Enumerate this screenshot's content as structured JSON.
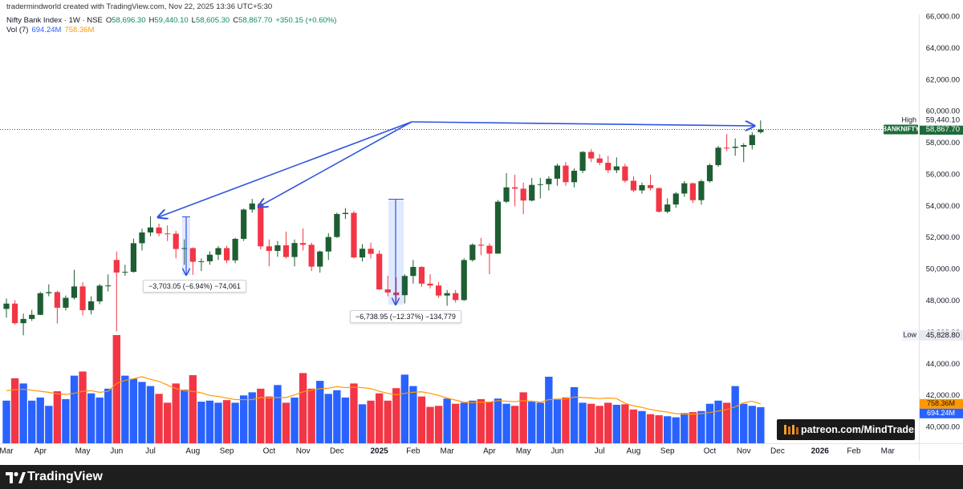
{
  "header": {
    "credit": "tradermindworld created with TradingView.com, Nov 22, 2025 13:36 UTC+5:30"
  },
  "chart_data": {
    "type": "candlestick",
    "title": "Nifty Bank Index · 1W · NSE",
    "ohlc_legend": [
      {
        "key": "O",
        "text": "58,696.30"
      },
      {
        "key": "H",
        "text": "59,440.10"
      },
      {
        "key": "L",
        "text": "58,605.30"
      },
      {
        "key": "C",
        "text": "58,867.70"
      }
    ],
    "change": "+350.15 (+0.60%)",
    "categories": [
      "Mar",
      null,
      null,
      null,
      "Apr",
      null,
      null,
      null,
      null,
      "May",
      null,
      null,
      null,
      "Jun",
      null,
      null,
      null,
      "Jul",
      null,
      null,
      null,
      null,
      "Aug",
      null,
      null,
      null,
      "Sep",
      null,
      null,
      null,
      null,
      "Oct",
      null,
      null,
      null,
      "Nov",
      null,
      null,
      null,
      "Dec",
      null,
      null,
      null,
      null,
      "2025",
      null,
      null,
      null,
      "Feb",
      null,
      null,
      null,
      "Mar",
      null,
      null,
      null,
      null,
      "Apr",
      null,
      null,
      null,
      "May",
      null,
      null,
      null,
      "Jun",
      null,
      null,
      null,
      null,
      "Jul",
      null,
      null,
      null,
      "Aug",
      null,
      null,
      null,
      "Sep",
      null,
      null,
      null,
      null,
      "Oct",
      null,
      null,
      null,
      "Nov",
      null,
      null,
      null,
      "Dec",
      null,
      null,
      null,
      null,
      "2026",
      null,
      null,
      null,
      "Feb",
      null,
      null,
      null,
      "Mar",
      null,
      null,
      null
    ],
    "open": [
      47500,
      47836,
      46594,
      46864,
      47124,
      48493,
      48564,
      47574,
      48201,
      48923,
      47421,
      47977,
      48971,
      50600,
      49803,
      49847,
      51661,
      52342,
      52660,
      52279,
      52265,
      51295,
      51350,
      50485,
      50517,
      50933,
      51351,
      50576,
      51938,
      53793,
      54178,
      51462,
      51172,
      51531,
      50788,
      51673,
      51561,
      50179,
      51135,
      52055,
      53510,
      53583,
      50759,
      51311,
      50988,
      48734,
      48540,
      48368,
      49587,
      50158,
      49099,
      48981,
      48345,
      48497,
      48060,
      50593,
      51564,
      51502,
      51002,
      54290,
      55201,
      55115,
      54365,
      55355,
      55398,
      55749,
      56578,
      55527,
      56252,
      57443,
      57031,
      56755,
      56283,
      56528,
      55618,
      55005,
      55341,
      55149,
      53655,
      54114,
      54809,
      55458,
      54389,
      55589,
      56609,
      57713,
      57699,
      57776,
      57877,
      58696.3,
      null,
      null,
      null,
      null,
      null,
      null,
      null,
      null,
      null,
      null,
      null,
      null,
      null,
      null,
      null,
      null,
      null,
      null
    ],
    "high": [
      48161,
      48050,
      47200,
      47440,
      48580,
      49057,
      48650,
      48350,
      49975,
      49200,
      48300,
      49080,
      49690,
      51133,
      50300,
      51960,
      52580,
      53357,
      52900,
      52790,
      52450,
      51900,
      51400,
      50700,
      51150,
      51480,
      51500,
      52000,
      53860,
      54467,
      54200,
      51900,
      51800,
      52400,
      51900,
      52600,
      51700,
      51200,
      52300,
      53600,
      53888,
      53700,
      51600,
      51700,
      51200,
      49600,
      49500,
      49700,
      50600,
      50200,
      49700,
      49200,
      48700,
      48700,
      50700,
      51650,
      52000,
      51650,
      54400,
      56100,
      56000,
      55500,
      55800,
      55800,
      55900,
      56700,
      56800,
      56400,
      57500,
      57614,
      57300,
      57200,
      57100,
      56700,
      55900,
      55500,
      56000,
      55200,
      54500,
      54900,
      55600,
      55500,
      55700,
      56700,
      57830,
      58577,
      58300,
      58000,
      58700,
      59440.1,
      null,
      null,
      null,
      null,
      null,
      null,
      null,
      null,
      null,
      null,
      null,
      null,
      null,
      null,
      null,
      null,
      null,
      null
    ],
    "low": [
      46950,
      46511,
      45828.8,
      46740,
      47100,
      48300,
      46580,
      47400,
      48100,
      47100,
      47150,
      47800,
      48600,
      46077,
      49600,
      49800,
      51200,
      52100,
      52100,
      51800,
      50700,
      50300,
      49654.6,
      49900,
      50300,
      50600,
      50400,
      50400,
      51800,
      53600,
      51280,
      50200,
      50800,
      50700,
      50200,
      51200,
      49900,
      49800,
      50600,
      52000,
      53200,
      50700,
      50500,
      50700,
      48700,
      48300,
      47900,
      47844,
      49100,
      48900,
      48800,
      48200,
      47700,
      47900,
      48000,
      50500,
      50900,
      49700,
      51000,
      54200,
      54000,
      53500,
      54300,
      54500,
      55000,
      55300,
      55300,
      55200,
      56100,
      56800,
      56600,
      56100,
      56100,
      55500,
      54900,
      54800,
      55000,
      53600,
      53560,
      53900,
      54600,
      54200,
      54100,
      55500,
      56500,
      57500,
      57200,
      56800,
      57600,
      58605.3,
      null,
      null,
      null,
      null,
      null,
      null,
      null,
      null,
      null,
      null,
      null,
      null,
      null,
      null,
      null,
      null,
      null,
      null
    ],
    "close": [
      47836,
      46594,
      46864,
      47124,
      48493,
      48564,
      47574,
      48201,
      48923,
      47421,
      47977,
      48971,
      48983,
      49803,
      49847,
      51661,
      52342,
      52660,
      52279,
      52265,
      51295,
      51350,
      50485,
      50517,
      50933,
      51351,
      50576,
      51938,
      53793,
      54178,
      51462,
      51172,
      51531,
      50788,
      51673,
      51561,
      50179,
      51135,
      52055,
      53510,
      53583,
      50759,
      51311,
      50988,
      48734,
      48540,
      48368,
      49587,
      50158,
      49099,
      48981,
      48345,
      48497,
      48060,
      50593,
      51564,
      51502,
      51002,
      54290,
      55201,
      55115,
      54365,
      55355,
      55398,
      55749,
      56578,
      55527,
      56252,
      57443,
      57031,
      56755,
      56283,
      56528,
      55618,
      55005,
      55341,
      55149,
      53655,
      54114,
      54809,
      55458,
      54389,
      55589,
      56609,
      57713,
      57699,
      57776,
      57877,
      58517,
      58867.7,
      null,
      null,
      null,
      null,
      null,
      null,
      null,
      null,
      null,
      null,
      null,
      null,
      null,
      null,
      null,
      null,
      null,
      null
    ],
    "up_color": "#1e5e32",
    "down_color": "#f23645",
    "ylim": [
      38985,
      66155
    ],
    "yticks": [
      {
        "value": 40000,
        "label": "40,000.00"
      },
      {
        "value": 42000,
        "label": "42,000.00"
      },
      {
        "value": 44000,
        "label": "44,000.00"
      },
      {
        "value": 46000,
        "label": "46,000.00"
      },
      {
        "value": 48000,
        "label": "48,000.00"
      },
      {
        "value": 50000,
        "label": "50,000.00"
      },
      {
        "value": 52000,
        "label": "52,000.00"
      },
      {
        "value": 54000,
        "label": "54,000.00"
      },
      {
        "value": 56000,
        "label": "56,000.00"
      },
      {
        "value": 58000,
        "label": "58,000.00"
      },
      {
        "value": 60000,
        "label": "60,000.00"
      },
      {
        "value": 62000,
        "label": "62,000.00"
      },
      {
        "value": 64000,
        "label": "64,000.00"
      },
      {
        "value": 66000,
        "label": "66,000.00"
      }
    ],
    "grid": false,
    "last_price": {
      "name": "BANKNIFTY",
      "value": 58867.7,
      "label": "58,867.70",
      "color": "#1e6b3a"
    },
    "high_marker": {
      "name": "High",
      "value": 59440.1,
      "label": "59,440.10"
    },
    "low_marker": {
      "name": "Low",
      "value": 45828.8,
      "label": "45,828.80"
    },
    "volume": {
      "name": "Vol (7)",
      "up_color": "#2962ff",
      "down_color": "#f23645",
      "last_label": "694.24M",
      "values": [
        820,
        1250,
        1150,
        820,
        880,
        720,
        1000,
        850,
        1300,
        1380,
        960,
        880,
        1050,
        2080,
        1300,
        1240,
        1180,
        1100,
        950,
        780,
        1150,
        1030,
        1310,
        800,
        820,
        780,
        830,
        780,
        920,
        980,
        1050,
        900,
        1120,
        780,
        880,
        1350,
        1050,
        1200,
        950,
        1020,
        880,
        1150,
        750,
        820,
        960,
        820,
        1060,
        1320,
        1100,
        900,
        700,
        720,
        860,
        760,
        780,
        820,
        850,
        800,
        860,
        760,
        720,
        980,
        800,
        780,
        1280,
        840,
        880,
        1080,
        780,
        760,
        720,
        780,
        740,
        750,
        650,
        620,
        560,
        540,
        520,
        500,
        580,
        600,
        620,
        760,
        820,
        780,
        1100,
        760,
        720,
        694.24,
        null,
        null,
        null,
        null,
        null,
        null,
        null,
        null,
        null,
        null,
        null,
        null,
        null,
        null,
        null,
        null,
        null,
        null
      ],
      "ma": {
        "color": "#ff9800",
        "last_label": "758.36M",
        "values": [
          1010,
          1030,
          1040,
          1020,
          1000,
          980,
          950,
          940,
          960,
          1000,
          1010,
          980,
          1000,
          1150,
          1210,
          1240,
          1280,
          1230,
          1190,
          1120,
          1050,
          1010,
          1000,
          970,
          920,
          900,
          870,
          840,
          840,
          840,
          880,
          870,
          880,
          880,
          930,
          990,
          1020,
          1050,
          1060,
          1090,
          1070,
          1080,
          1070,
          1050,
          1000,
          960,
          930,
          960,
          980,
          990,
          960,
          920,
          870,
          830,
          790,
          780,
          790,
          790,
          820,
          810,
          800,
          820,
          810,
          790,
          840,
          850,
          850,
          890,
          880,
          870,
          860,
          870,
          860,
          770,
          720,
          690,
          650,
          620,
          600,
          570,
          560,
          560,
          570,
          590,
          620,
          650,
          700,
          780,
          810,
          758.36,
          null,
          null,
          null,
          null,
          null,
          null,
          null,
          null,
          null,
          null,
          null,
          null,
          null,
          null,
          null,
          null,
          null,
          null
        ]
      }
    },
    "annotations": [
      "−3,703.05 (−6.94%) −74,061",
      "−6,738.95 (−12.37%) −134,779"
    ]
  },
  "watermark": "patreon.com/MindTrader",
  "footer": {
    "brand": "TradingView"
  }
}
